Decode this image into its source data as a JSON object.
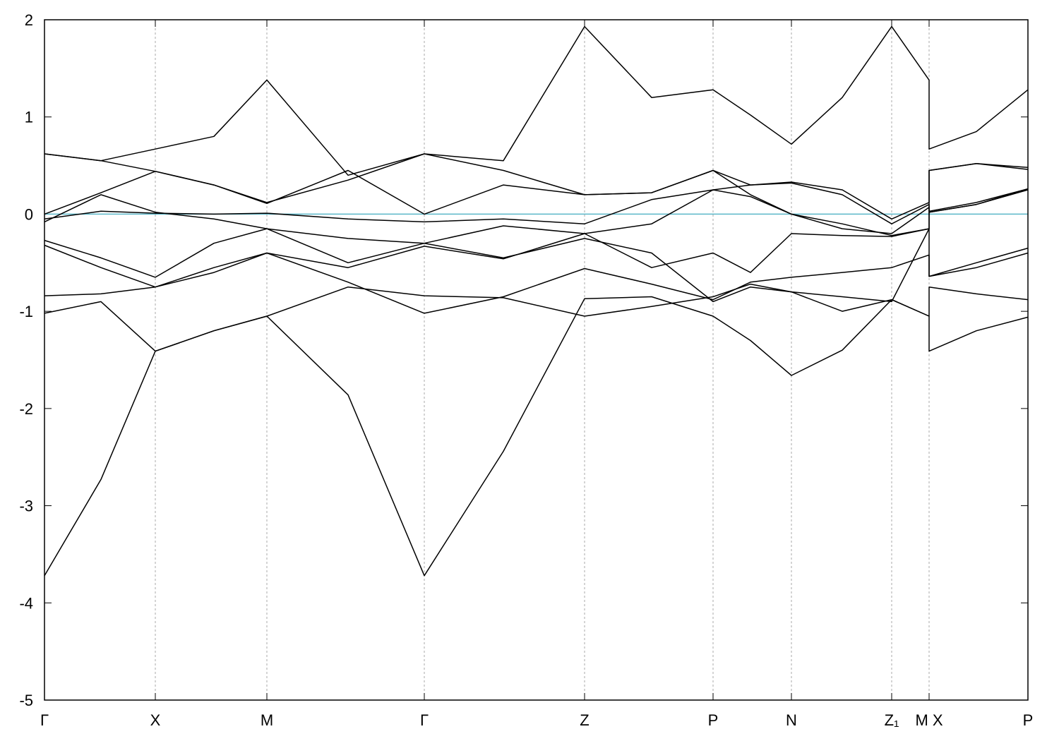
{
  "chart_data": {
    "type": "line",
    "x": [
      0,
      0.8,
      1.57,
      2.4,
      3.15,
      4.3,
      5.38,
      6.5,
      7.65,
      8.6,
      9.47,
      10.0,
      10.58,
      11.3,
      12.0,
      12.53,
      12.53,
      13.2,
      13.93
    ],
    "color": "#000000",
    "series": [
      {
        "values": [
          -3.72,
          -2.73,
          -1.41,
          -1.2,
          -1.05,
          -1.86,
          -3.72,
          -2.44,
          -0.87,
          -0.85,
          -1.05,
          -1.3,
          -1.66,
          -1.4,
          -0.88,
          -1.05,
          -1.41,
          -1.2,
          -1.06
        ]
      },
      {
        "values": [
          -1.02,
          -0.9,
          -1.41,
          -1.2,
          -1.05,
          -0.75,
          -0.84,
          -0.86,
          -1.05,
          -0.95,
          -0.85,
          -0.72,
          -0.8,
          -1.0,
          -0.88,
          -1.05,
          -0.75,
          -0.82,
          -0.88
        ]
      },
      {
        "values": [
          -0.84,
          -0.82,
          -0.75,
          -0.55,
          -0.4,
          -0.7,
          -1.02,
          -0.85,
          -0.56,
          -0.72,
          -0.88,
          -0.7,
          -0.65,
          -0.6,
          -0.55,
          -0.42,
          -0.64,
          -0.55,
          -0.4
        ]
      },
      {
        "values": [
          -0.32,
          -0.55,
          -0.75,
          -0.6,
          -0.4,
          -0.55,
          -0.33,
          -0.46,
          -0.2,
          -0.55,
          -0.4,
          -0.6,
          -0.2,
          -0.22,
          -0.23,
          -0.15,
          -0.64,
          -0.5,
          -0.35
        ]
      },
      {
        "values": [
          -0.27,
          -0.45,
          -0.65,
          -0.3,
          -0.15,
          -0.25,
          -0.3,
          -0.45,
          -0.25,
          -0.4,
          -0.9,
          -0.75,
          -0.8,
          -0.85,
          -0.9,
          -0.15,
          0.02,
          0.1,
          0.25
        ]
      },
      {
        "values": [
          -0.08,
          0.2,
          0.02,
          -0.05,
          -0.15,
          -0.5,
          -0.3,
          -0.12,
          -0.2,
          -0.1,
          0.25,
          0.3,
          0.32,
          0.2,
          -0.1,
          0.1,
          0.02,
          0.1,
          0.26
        ]
      },
      {
        "values": [
          -0.05,
          0.03,
          0.01,
          0.0,
          0.01,
          -0.05,
          -0.08,
          -0.05,
          -0.1,
          0.15,
          0.25,
          0.18,
          0.0,
          -0.15,
          -0.2,
          0.07,
          0.03,
          0.12,
          0.26
        ]
      },
      {
        "values": [
          0.0,
          0.22,
          0.44,
          0.3,
          0.12,
          0.35,
          0.62,
          0.45,
          0.2,
          0.22,
          0.45,
          0.2,
          0.0,
          -0.1,
          -0.22,
          -0.15,
          0.45,
          0.52,
          0.48
        ]
      },
      {
        "values": [
          0.62,
          0.55,
          0.44,
          0.3,
          0.11,
          0.45,
          0.0,
          0.3,
          0.2,
          0.22,
          0.45,
          0.3,
          0.33,
          0.25,
          -0.05,
          0.12,
          0.45,
          0.52,
          0.46
        ]
      },
      {
        "values": [
          0.62,
          0.55,
          0.67,
          0.8,
          1.38,
          0.4,
          0.62,
          0.55,
          1.93,
          1.2,
          1.28,
          1.02,
          0.72,
          1.2,
          1.93,
          1.38,
          0.67,
          0.85,
          1.28
        ]
      }
    ],
    "xlim": [
      0,
      13.93
    ],
    "xticks": [
      {
        "value": 0,
        "label": "Γ"
      },
      {
        "value": 1.57,
        "label": "X"
      },
      {
        "value": 3.15,
        "label": "M"
      },
      {
        "value": 5.38,
        "label": "Γ"
      },
      {
        "value": 7.65,
        "label": "Z"
      },
      {
        "value": 9.47,
        "label": "P"
      },
      {
        "value": 10.58,
        "label": "N"
      },
      {
        "value": 12.0,
        "label": "Z₁"
      },
      {
        "value": 12.53,
        "label": "M X"
      },
      {
        "value": 13.93,
        "label": "P"
      }
    ],
    "ylim": [
      -5,
      2
    ],
    "yticks": [
      -5,
      -4,
      -3,
      -2,
      -1,
      0,
      1,
      2
    ],
    "grid": true,
    "hline": {
      "value": 0,
      "color": "#5bb7c9"
    }
  }
}
